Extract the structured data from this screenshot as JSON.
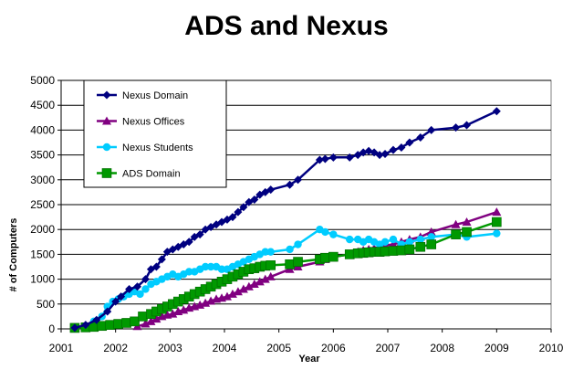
{
  "chart_data": {
    "type": "line",
    "title": "ADS and Nexus",
    "xlabel": "Year",
    "ylabel": "# of Computers",
    "xlim": [
      2001,
      2010
    ],
    "ylim": [
      0,
      5000
    ],
    "x_ticks": [
      "2001",
      "2002",
      "2003",
      "2004",
      "2005",
      "2006",
      "2007",
      "2008",
      "2009",
      "2010"
    ],
    "y_ticks": [
      "0",
      "500",
      "1000",
      "1500",
      "2000",
      "2500",
      "3000",
      "3500",
      "4000",
      "4500",
      "5000"
    ],
    "grid": "horizontal",
    "legend_position": "top-left",
    "series": [
      {
        "name": "Nexus Domain",
        "color": "#000080",
        "marker": "diamond",
        "x": [
          2001.25,
          2001.45,
          2001.65,
          2001.85,
          2002.0,
          2002.1,
          2002.25,
          2002.4,
          2002.55,
          2002.65,
          2002.75,
          2002.85,
          2002.95,
          2003.05,
          2003.15,
          2003.25,
          2003.35,
          2003.45,
          2003.55,
          2003.65,
          2003.75,
          2003.85,
          2003.95,
          2004.05,
          2004.15,
          2004.25,
          2004.35,
          2004.45,
          2004.55,
          2004.65,
          2004.75,
          2004.85,
          2005.2,
          2005.35,
          2005.75,
          2005.85,
          2006.0,
          2006.3,
          2006.45,
          2006.55,
          2006.65,
          2006.75,
          2006.85,
          2006.95,
          2007.1,
          2007.25,
          2007.4,
          2007.6,
          2007.8,
          2008.25,
          2008.45,
          2009.0
        ],
        "y": [
          20,
          80,
          180,
          350,
          550,
          650,
          800,
          850,
          1000,
          1200,
          1250,
          1400,
          1550,
          1600,
          1650,
          1700,
          1750,
          1850,
          1900,
          2000,
          2050,
          2100,
          2150,
          2200,
          2250,
          2350,
          2450,
          2550,
          2600,
          2700,
          2750,
          2800,
          2900,
          3000,
          3400,
          3420,
          3450,
          3450,
          3500,
          3550,
          3580,
          3550,
          3500,
          3520,
          3600,
          3650,
          3750,
          3850,
          4000,
          4050,
          4100,
          4380
        ]
      },
      {
        "name": "Nexus Offices",
        "color": "#800080",
        "marker": "triangle",
        "x": [
          2002.4,
          2002.55,
          2002.65,
          2002.75,
          2002.85,
          2002.95,
          2003.05,
          2003.15,
          2003.25,
          2003.35,
          2003.45,
          2003.55,
          2003.65,
          2003.75,
          2003.85,
          2003.95,
          2004.05,
          2004.15,
          2004.25,
          2004.35,
          2004.45,
          2004.55,
          2004.65,
          2004.75,
          2004.85,
          2005.2,
          2005.35,
          2005.75,
          2005.85,
          2006.0,
          2006.3,
          2006.45,
          2006.55,
          2006.65,
          2006.75,
          2006.85,
          2006.95,
          2007.1,
          2007.25,
          2007.4,
          2007.6,
          2007.8,
          2008.25,
          2008.45,
          2009.0
        ],
        "y": [
          50,
          100,
          150,
          200,
          250,
          280,
          300,
          350,
          380,
          420,
          450,
          480,
          520,
          560,
          600,
          620,
          650,
          700,
          750,
          800,
          850,
          900,
          950,
          1000,
          1050,
          1200,
          1250,
          1350,
          1400,
          1450,
          1500,
          1550,
          1580,
          1600,
          1620,
          1650,
          1680,
          1700,
          1750,
          1800,
          1850,
          1950,
          2100,
          2150,
          2350
        ]
      },
      {
        "name": "Nexus Students",
        "color": "#00CCFF",
        "marker": "circle",
        "x": [
          2001.25,
          2001.45,
          2001.6,
          2001.75,
          2001.85,
          2001.95,
          2002.05,
          2002.15,
          2002.25,
          2002.35,
          2002.45,
          2002.55,
          2002.65,
          2002.75,
          2002.85,
          2002.95,
          2003.05,
          2003.15,
          2003.25,
          2003.35,
          2003.45,
          2003.55,
          2003.65,
          2003.75,
          2003.85,
          2003.95,
          2004.05,
          2004.15,
          2004.25,
          2004.35,
          2004.45,
          2004.55,
          2004.65,
          2004.75,
          2004.85,
          2005.2,
          2005.35,
          2005.75,
          2005.85,
          2006.0,
          2006.3,
          2006.45,
          2006.55,
          2006.65,
          2006.75,
          2006.85,
          2006.95,
          2007.1,
          2007.25,
          2007.4,
          2007.6,
          2007.8,
          2008.25,
          2008.45,
          2009.0
        ],
        "y": [
          20,
          50,
          150,
          250,
          450,
          550,
          600,
          650,
          700,
          750,
          700,
          800,
          900,
          950,
          1000,
          1050,
          1100,
          1050,
          1100,
          1150,
          1150,
          1200,
          1250,
          1250,
          1250,
          1200,
          1200,
          1250,
          1300,
          1350,
          1400,
          1450,
          1500,
          1550,
          1550,
          1600,
          1700,
          2000,
          1950,
          1900,
          1800,
          1800,
          1750,
          1800,
          1750,
          1700,
          1750,
          1800,
          1700,
          1750,
          1800,
          1850,
          1900,
          1850,
          1920
        ]
      },
      {
        "name": "ADS Domain",
        "color": "#009900",
        "marker": "square",
        "x": [
          2001.25,
          2001.45,
          2001.6,
          2001.75,
          2001.9,
          2002.05,
          2002.2,
          2002.35,
          2002.5,
          2002.65,
          2002.75,
          2002.85,
          2002.95,
          2003.05,
          2003.15,
          2003.25,
          2003.35,
          2003.45,
          2003.55,
          2003.65,
          2003.75,
          2003.85,
          2003.95,
          2004.05,
          2004.15,
          2004.25,
          2004.35,
          2004.45,
          2004.55,
          2004.65,
          2004.75,
          2004.85,
          2005.2,
          2005.35,
          2005.75,
          2005.85,
          2006.0,
          2006.3,
          2006.45,
          2006.55,
          2006.65,
          2006.75,
          2006.85,
          2006.95,
          2007.1,
          2007.25,
          2007.4,
          2007.6,
          2007.8,
          2008.25,
          2008.45,
          2009.0
        ],
        "y": [
          20,
          30,
          40,
          60,
          80,
          100,
          120,
          150,
          250,
          300,
          350,
          400,
          450,
          500,
          550,
          600,
          650,
          700,
          750,
          800,
          850,
          900,
          950,
          1000,
          1050,
          1100,
          1150,
          1200,
          1220,
          1250,
          1270,
          1280,
          1300,
          1350,
          1400,
          1430,
          1450,
          1500,
          1520,
          1530,
          1540,
          1550,
          1550,
          1560,
          1570,
          1580,
          1600,
          1650,
          1700,
          1900,
          1950,
          2150
        ]
      }
    ]
  }
}
